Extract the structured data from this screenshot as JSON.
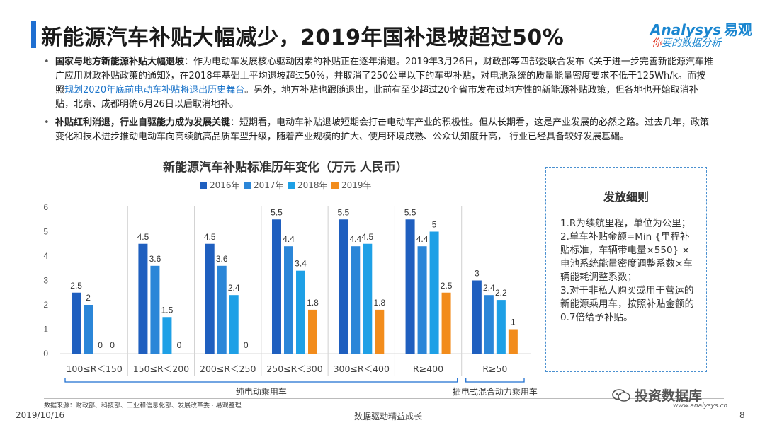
{
  "header": {
    "title": "新能源汽车补贴大幅减少，2019年国补退坡超过50%",
    "logo_en": "Analysys",
    "logo_cn": "易观",
    "logo_tag_red": "你",
    "logo_tag_rest": "要的数据分析"
  },
  "bullets": [
    {
      "bold": "国家与地方新能源补贴大幅退坡",
      "text1": "：作为电动车发展核心驱动因素的补贴正在逐年消退。2019年3月26日，财政部等四部委联合发布《关于进一步完善新能源汽车推广应用财政补贴政策的通知》，在2018年基础上平均退坡超过50%，并取消了250公里以下的车型补贴，对电池系统的质量能量密度要求不低于125Wh/k。而按照",
      "highlight": "规划2020年底前电动车补贴将退出历史舞台",
      "text2": "。另外，地方补贴也跟随退出，此前有至少超过20个省市发布过地方性的新能源补贴政策，但各地也开始取消补贴，北京、成都明确6月26日以后取消地补。"
    },
    {
      "bold": "补贴红利消退，行业自驱能力成为发展关键",
      "text1": "：短期看，电动车补贴退坡短期会打击电动车产业的积极性。但从长期看，这是产业发展的必然之路。过去几年，政策变化和技术进步推动电动车向高续航高品质车型升级，随着产业规模的扩大、使用环境成熟、公众认知度升高， 行业已经具备较好发展基础。",
      "highlight": "",
      "text2": ""
    }
  ],
  "chart_data": {
    "type": "bar",
    "title": "新能源汽车补贴标准历年变化（万元 人民币）",
    "categories": [
      "100≤R＜150",
      "150≤R＜200",
      "200≤R＜250",
      "250≤R＜300",
      "300≤R＜400",
      "R≥400",
      "R≥50"
    ],
    "series": [
      {
        "name": "2016年",
        "color": "#1f5fbf",
        "values": [
          2.5,
          4.5,
          4.5,
          5.5,
          5.5,
          5.5,
          3
        ]
      },
      {
        "name": "2017年",
        "color": "#2b86d8",
        "values": [
          2,
          3.6,
          3.6,
          4.4,
          4.4,
          4.4,
          2.4
        ]
      },
      {
        "name": "2018年",
        "color": "#1ea0e6",
        "values": [
          0,
          1.5,
          2.4,
          3.4,
          4.5,
          5,
          2.2
        ]
      },
      {
        "name": "2019年",
        "color": "#f28c1c",
        "values": [
          0,
          0,
          0,
          1.8,
          1.8,
          2.5,
          1
        ]
      }
    ],
    "yticks": [
      0,
      1,
      2,
      3,
      4,
      5,
      6
    ],
    "ylim": [
      0,
      6
    ],
    "groups": [
      {
        "label": "纯电动乘用车",
        "from": 0,
        "to": 5
      },
      {
        "label": "插电式混合动力乘用车",
        "from": 6,
        "to": 6
      }
    ]
  },
  "panel": {
    "title": "发放细则",
    "lines": [
      "1.R为续航里程，单位为公里；",
      "2.单车补贴金额=Min {里程补贴标准，车辆带电量×550} ×电池系统能量密度调整系数×车辆能耗调整系数；",
      "3.对于非私人购买或用于营运的新能源乘用车，按照补贴金额的0.7倍给予补贴。"
    ]
  },
  "footer": {
    "source": "数据来源：财政部、科技部、工业和信息化部、发展改革委 · 易观整理",
    "date": "2019/10/16",
    "motto": "数据驱动精益成长",
    "page": "8",
    "watermark": "投资数据库",
    "site": "www.analysys.cn"
  }
}
